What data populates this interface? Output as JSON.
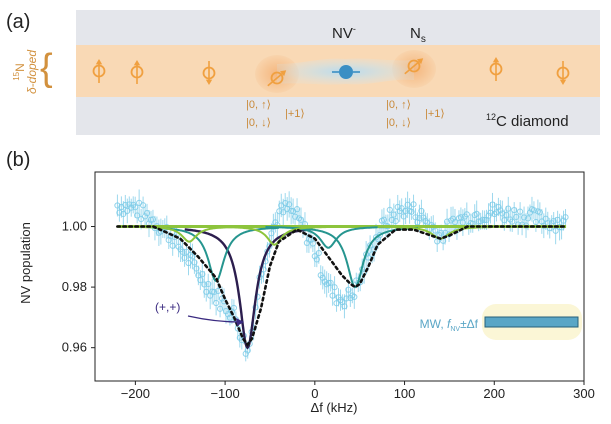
{
  "panel_a": {
    "label": "(a)",
    "layer_label_isotope": "15",
    "layer_label_element": "N",
    "layer_label_doped": "δ-doped",
    "nv_label": "NV",
    "nv_sup": "-",
    "ns_label": "N",
    "ns_sub": "s",
    "state_left_1": "|0, ↑⟩",
    "state_left_2": "|0, ↓⟩",
    "state_left_3": "|+1⟩",
    "state_right_1": "|0, ↑⟩",
    "state_right_2": "|0, ↓⟩",
    "state_right_3": "|+1⟩",
    "diamond_isotope": "12",
    "diamond_label": "C diamond"
  },
  "panel_b": {
    "label": "(b)",
    "peak_annotation": "(+,+)",
    "legend_prefix": "MW, ",
    "legend_f": "f",
    "legend_sub": "NV",
    "legend_suffix": "±Δf"
  },
  "colors": {
    "layer_orange": "#f9d9b5",
    "gray_band": "#e4e6eb",
    "spin_orange": "#f0a040",
    "nv_blue": "#3a8fc4",
    "data_blue": "#7ccbe8",
    "dark_fit": "#2c1e4e",
    "purple": "#4a3a8a",
    "teal": "#26958f",
    "green": "#8dc43c",
    "legend_bar": "#5aa6c6",
    "legend_glow": "#fbf6d6"
  },
  "chart_data": {
    "type": "scatter",
    "title": "",
    "xlabel": "Δf (kHz)",
    "ylabel": "NV population",
    "xlim": [
      -245,
      300
    ],
    "ylim": [
      0.949,
      1.018
    ],
    "xticks": [
      -200,
      -100,
      0,
      100,
      200,
      300
    ],
    "xtick_labels": [
      "−200",
      "−100",
      "0",
      "100",
      "200",
      "300"
    ],
    "yticks": [
      0.96,
      0.98,
      1.0
    ],
    "ytick_labels": [
      "0.96",
      "0.98",
      "1.00"
    ],
    "grid": false,
    "legend": "bottom-right",
    "series": [
      {
        "kind": "data",
        "x": [
          -220,
          -200,
          -180,
          -160,
          -140,
          -120,
          -110,
          -100,
          -90,
          -80,
          -75,
          -70,
          -60,
          -50,
          -40,
          -30,
          -20,
          -10,
          0,
          10,
          20,
          30,
          40,
          50,
          60,
          70,
          80,
          90,
          100,
          110,
          120,
          140,
          160,
          180,
          200,
          220,
          240,
          260,
          280
        ],
        "y": [
          1.007,
          1.006,
          1.002,
          0.997,
          0.989,
          0.981,
          0.977,
          0.974,
          0.971,
          0.963,
          0.958,
          0.966,
          0.985,
          0.997,
          1.004,
          1.006,
          1.003,
          0.998,
          0.992,
          0.984,
          0.978,
          0.976,
          0.977,
          0.982,
          0.991,
          0.997,
          1.002,
          1.004,
          1.006,
          1.005,
          1.003,
          0.997,
          1.002,
          1.004,
          1.005,
          1.004,
          1.003,
          1.002,
          1.001
        ]
      },
      {
        "kind": "fit",
        "x": [
          -220,
          -180,
          -150,
          -130,
          -110,
          -100,
          -90,
          -80,
          -75,
          -70,
          -60,
          -50,
          -40,
          -20,
          0,
          10,
          20,
          30,
          40,
          45,
          50,
          60,
          70,
          90,
          110,
          130,
          140,
          150,
          170,
          200,
          240,
          280
        ],
        "y": [
          1.0,
          1.0,
          0.996,
          0.99,
          0.983,
          0.976,
          0.97,
          0.963,
          0.961,
          0.963,
          0.973,
          0.987,
          0.995,
          0.999,
          0.996,
          0.992,
          0.988,
          0.984,
          0.981,
          0.98,
          0.981,
          0.987,
          0.994,
          0.999,
          0.999,
          0.997,
          0.996,
          0.997,
          1.0,
          1.0,
          1.0,
          1.0
        ]
      },
      {
        "kind": "component",
        "center": -75,
        "depth": 0.04,
        "width": 11
      },
      {
        "kind": "component",
        "center": -110,
        "depth": 0.018,
        "width": 11
      },
      {
        "kind": "component",
        "center": 45,
        "depth": 0.02,
        "width": 11
      },
      {
        "kind": "component",
        "center": 15,
        "depth": 0.007,
        "width": 11
      },
      {
        "kind": "component",
        "center": -45,
        "depth": 0.006,
        "width": 10
      },
      {
        "kind": "component",
        "center": -140,
        "depth": 0.005,
        "width": 10
      },
      {
        "kind": "component",
        "center": 140,
        "depth": 0.004,
        "width": 12
      }
    ]
  }
}
